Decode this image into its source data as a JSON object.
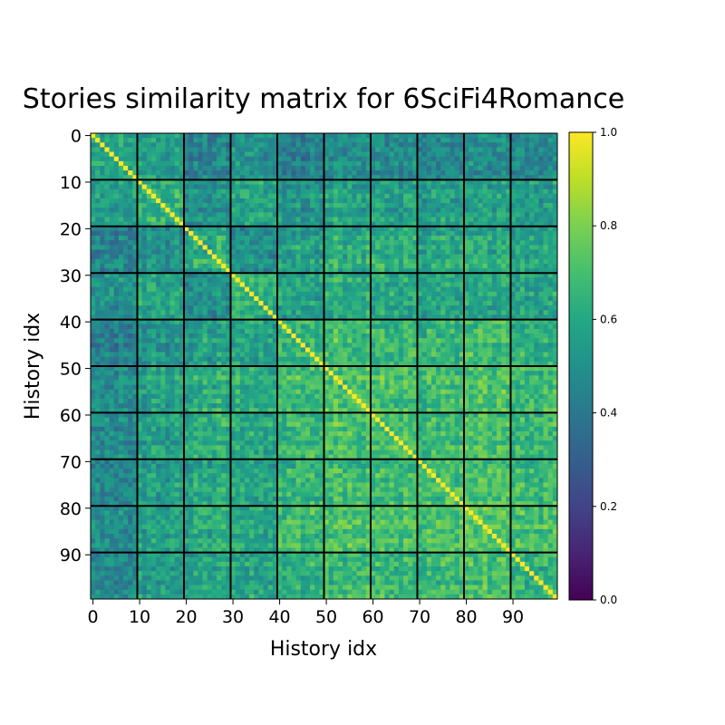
{
  "chart_data": {
    "type": "heatmap",
    "title": "Stories similarity matrix for 6SciFi4Romance",
    "xlabel": "History idx",
    "ylabel": "History idx",
    "size": 100,
    "block_size": 10,
    "xlim": [
      0,
      99
    ],
    "ylim": [
      0,
      99
    ],
    "x_ticks": [
      0,
      10,
      20,
      30,
      40,
      50,
      60,
      70,
      80,
      90
    ],
    "y_ticks": [
      0,
      10,
      20,
      30,
      40,
      50,
      60,
      70,
      80,
      90
    ],
    "colormap": "viridis",
    "vmin": 0.0,
    "vmax": 1.0,
    "colorbar_ticks": [
      "0.0",
      "0.2",
      "0.4",
      "0.6",
      "0.8",
      "1.0"
    ],
    "diagonal_value": 1.0,
    "grid_lines": "black block boundaries every 10 indices",
    "block_mean_similarity": [
      [
        0.58,
        0.55,
        0.44,
        0.5,
        0.42,
        0.48,
        0.47,
        0.45,
        0.47,
        0.46
      ],
      [
        0.55,
        0.62,
        0.5,
        0.57,
        0.5,
        0.56,
        0.55,
        0.53,
        0.55,
        0.54
      ],
      [
        0.44,
        0.5,
        0.6,
        0.48,
        0.55,
        0.6,
        0.62,
        0.58,
        0.6,
        0.58
      ],
      [
        0.5,
        0.57,
        0.48,
        0.62,
        0.55,
        0.6,
        0.58,
        0.57,
        0.58,
        0.56
      ],
      [
        0.42,
        0.5,
        0.55,
        0.55,
        0.64,
        0.66,
        0.64,
        0.64,
        0.66,
        0.62
      ],
      [
        0.48,
        0.56,
        0.6,
        0.6,
        0.66,
        0.7,
        0.68,
        0.67,
        0.69,
        0.66
      ],
      [
        0.47,
        0.55,
        0.62,
        0.58,
        0.64,
        0.68,
        0.68,
        0.66,
        0.68,
        0.65
      ],
      [
        0.45,
        0.53,
        0.58,
        0.57,
        0.64,
        0.67,
        0.66,
        0.68,
        0.7,
        0.66
      ],
      [
        0.47,
        0.55,
        0.6,
        0.58,
        0.66,
        0.69,
        0.68,
        0.7,
        0.7,
        0.68
      ],
      [
        0.46,
        0.54,
        0.58,
        0.56,
        0.62,
        0.66,
        0.65,
        0.66,
        0.68,
        0.64
      ]
    ],
    "row_offset": [
      0.0,
      0.02,
      -0.03,
      0.04,
      0.01,
      -0.02,
      0.05,
      0.0,
      -0.04,
      0.03,
      0.06,
      -0.06,
      0.02,
      0.05,
      -0.01,
      0.04,
      -0.05,
      0.01,
      0.08,
      0.0,
      -0.08,
      -0.06,
      0.03,
      -0.02,
      0.06,
      -0.05,
      -0.03,
      0.08,
      0.05,
      -0.04,
      0.02,
      0.06,
      -0.01,
      0.03,
      0.07,
      -0.02,
      0.04,
      -0.05,
      0.0,
      -0.06,
      0.05,
      -0.03,
      0.04,
      0.0,
      0.07,
      -0.04,
      0.02,
      0.06,
      -0.02,
      0.03,
      0.04,
      -0.03,
      0.08,
      0.02,
      -0.04,
      0.06,
      0.0,
      0.03,
      -0.02,
      0.05,
      -0.02,
      0.04,
      0.07,
      -0.01,
      0.03,
      0.0,
      -0.05,
      0.06,
      0.02,
      0.04,
      -0.08,
      -0.07,
      0.03,
      0.05,
      -0.02,
      0.06,
      0.08,
      0.02,
      -0.03,
      0.04,
      0.03,
      0.06,
      -0.02,
      0.05,
      0.07,
      0.0,
      -0.03,
      0.04,
      0.06,
      0.01,
      -0.04,
      0.02,
      0.05,
      -0.06,
      0.03,
      0.0,
      -0.05,
      0.04,
      0.02,
      0.06
    ]
  }
}
